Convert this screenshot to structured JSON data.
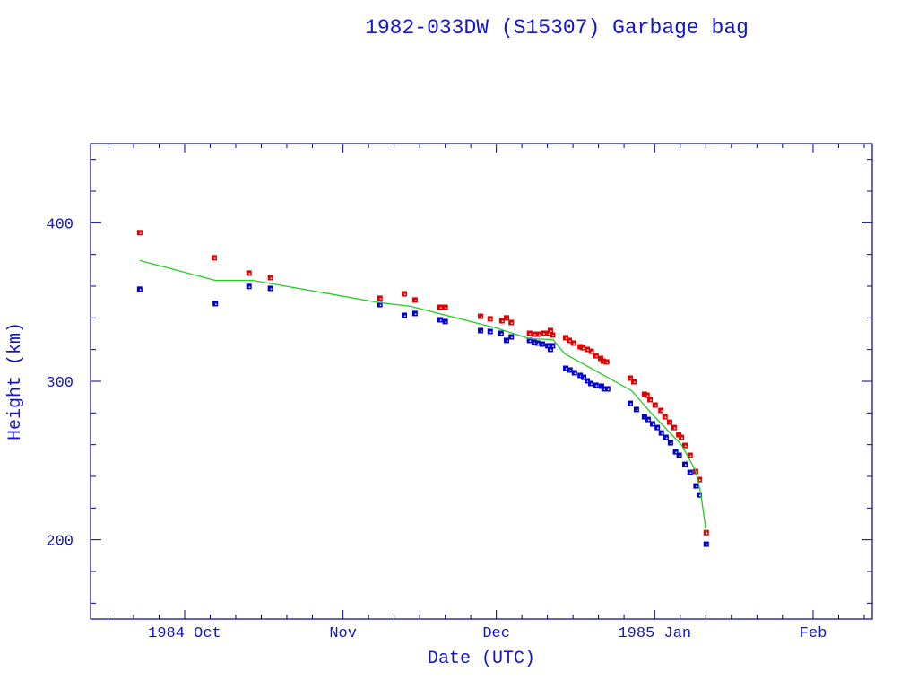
{
  "chart_data": {
    "type": "scatter",
    "title": "1982-033DW (S15307) Garbage bag",
    "xlabel": "Date (UTC)",
    "ylabel": "Height (km)",
    "xlim": [
      "1984-09-12T14:00",
      "1985-02-12T14:00"
    ],
    "ylim": [
      150,
      450
    ],
    "x_ticks": [
      {
        "date": "1984-10-01",
        "label": "1984 Oct"
      },
      {
        "date": "1984-11-01",
        "label": "Nov"
      },
      {
        "date": "1984-12-01",
        "label": "Dec"
      },
      {
        "date": "1985-01-01",
        "label": "1985 Jan"
      },
      {
        "date": "1985-02-01",
        "label": "Feb"
      }
    ],
    "y_ticks": [
      200,
      300,
      400
    ],
    "grid": false,
    "colors": {
      "axes": "#00008b",
      "text": "#1414c8",
      "apogee": "#e00000",
      "perigee": "#0000d0",
      "mean": "#22cc22"
    },
    "series": [
      {
        "marker": "square",
        "color": "#e00000",
        "points": [
          [
            "1984-09-22T05:00",
            393.8
          ],
          [
            "1984-10-06T19:00",
            377.9
          ],
          [
            "1984-10-13T14:00",
            368.3
          ],
          [
            "1984-10-17T19:00",
            365.4
          ],
          [
            "1984-11-08T05:00",
            352.4
          ],
          [
            "1984-11-13T00:00",
            355.2
          ],
          [
            "1984-11-15T02:00",
            351.3
          ],
          [
            "1984-11-20T00:00",
            346.7
          ],
          [
            "1984-11-21T00:00",
            346.7
          ],
          [
            "1984-11-27T22:00",
            341.0
          ],
          [
            "1984-11-29T19:00",
            339.4
          ],
          [
            "1984-12-02T02:00",
            338.2
          ],
          [
            "1984-12-03T00:00",
            340.0
          ],
          [
            "1984-12-03T22:00",
            337.1
          ],
          [
            "1984-12-07T12:00",
            330.3
          ],
          [
            "1984-12-08T10:00",
            329.7
          ],
          [
            "1984-12-09T07:00",
            329.7
          ],
          [
            "1984-12-10T05:00",
            330.3
          ],
          [
            "1984-12-11T05:00",
            330.3
          ],
          [
            "1984-12-11T14:00",
            332.0
          ],
          [
            "1984-12-12T00:00",
            329.2
          ],
          [
            "1984-12-14T14:00",
            327.5
          ],
          [
            "1984-12-15T07:00",
            325.8
          ],
          [
            "1984-12-16T02:00",
            324.1
          ],
          [
            "1984-12-17T10:00",
            321.8
          ],
          [
            "1984-12-17T22:00",
            321.2
          ],
          [
            "1984-12-18T19:00",
            320.1
          ],
          [
            "1984-12-19T14:00",
            318.9
          ],
          [
            "1984-12-20T12:00",
            316.1
          ],
          [
            "1984-12-21T10:00",
            314.4
          ],
          [
            "1984-12-21T22:00",
            312.7
          ],
          [
            "1984-12-22T14:00",
            312.2
          ],
          [
            "1984-12-27T05:00",
            302.0
          ],
          [
            "1984-12-27T22:00",
            299.7
          ],
          [
            "1984-12-30T00:00",
            291.8
          ],
          [
            "1984-12-30T12:00",
            291.2
          ],
          [
            "1984-12-31T02:00",
            288.4
          ],
          [
            "1985-01-01T02:00",
            285.0
          ],
          [
            "1985-01-02T05:00",
            281.6
          ],
          [
            "1985-01-03T00:00",
            277.6
          ],
          [
            "1985-01-03T22:00",
            274.2
          ],
          [
            "1985-01-04T19:00",
            270.8
          ],
          [
            "1985-01-05T17:00",
            266.3
          ],
          [
            "1985-01-06T05:00",
            264.6
          ],
          [
            "1985-01-06T22:00",
            259.5
          ],
          [
            "1985-01-07T22:00",
            253.3
          ],
          [
            "1985-01-09T00:00",
            243.1
          ],
          [
            "1985-01-09T17:00",
            238.0
          ],
          [
            "1985-01-11T02:00",
            204.5
          ]
        ]
      },
      {
        "marker": "square",
        "color": "#0000d0",
        "points": [
          [
            "1984-09-22T05:00",
            358.1
          ],
          [
            "1984-10-07T00:00",
            349.0
          ],
          [
            "1984-10-13T14:00",
            359.8
          ],
          [
            "1984-10-17T19:00",
            358.6
          ],
          [
            "1984-11-08T05:00",
            348.4
          ],
          [
            "1984-11-13T00:00",
            341.6
          ],
          [
            "1984-11-15T02:00",
            342.8
          ],
          [
            "1984-11-20T00:00",
            338.8
          ],
          [
            "1984-11-21T00:00",
            337.7
          ],
          [
            "1984-11-27T22:00",
            332.0
          ],
          [
            "1984-11-29T19:00",
            331.4
          ],
          [
            "1984-12-01T22:00",
            330.3
          ],
          [
            "1984-12-03T00:00",
            325.8
          ],
          [
            "1984-12-03T22:00",
            328.0
          ],
          [
            "1984-12-07T12:00",
            325.8
          ],
          [
            "1984-12-08T10:00",
            324.6
          ],
          [
            "1984-12-09T02:00",
            324.1
          ],
          [
            "1984-12-10T00:00",
            323.5
          ],
          [
            "1984-12-11T02:00",
            322.4
          ],
          [
            "1984-12-11T14:00",
            320.1
          ],
          [
            "1984-12-12T00:00",
            322.4
          ],
          [
            "1984-12-14T14:00",
            308.2
          ],
          [
            "1984-12-15T10:00",
            307.1
          ],
          [
            "1984-12-16T07:00",
            305.4
          ],
          [
            "1984-12-17T10:00",
            303.7
          ],
          [
            "1984-12-18T02:00",
            302.5
          ],
          [
            "1984-12-18T19:00",
            300.3
          ],
          [
            "1984-12-19T12:00",
            298.6
          ],
          [
            "1984-12-20T12:00",
            297.5
          ],
          [
            "1984-12-21T14:00",
            296.9
          ],
          [
            "1984-12-22T02:00",
            295.2
          ],
          [
            "1984-12-22T19:00",
            295.2
          ],
          [
            "1984-12-27T05:00",
            286.1
          ],
          [
            "1984-12-28T10:00",
            282.2
          ],
          [
            "1984-12-30T00:00",
            277.6
          ],
          [
            "1984-12-30T17:00",
            275.9
          ],
          [
            "1984-12-31T14:00",
            273.1
          ],
          [
            "1985-01-01T12:00",
            270.8
          ],
          [
            "1985-01-02T07:00",
            267.4
          ],
          [
            "1985-01-03T05:00",
            264.6
          ],
          [
            "1985-01-04T02:00",
            261.2
          ],
          [
            "1985-01-05T02:00",
            255.5
          ],
          [
            "1985-01-05T19:00",
            253.3
          ],
          [
            "1985-01-06T22:00",
            247.6
          ],
          [
            "1985-01-07T22:00",
            242.5
          ],
          [
            "1985-01-09T02:00",
            234.0
          ],
          [
            "1985-01-09T17:00",
            228.3
          ],
          [
            "1985-01-11T02:00",
            197.2
          ]
        ]
      },
      {
        "marker": "line",
        "color": "#22cc22",
        "points": [
          [
            "1984-09-22T05:00",
            376.2
          ],
          [
            "1984-10-07T00:00",
            363.7
          ],
          [
            "1984-10-14T07:00",
            363.7
          ],
          [
            "1984-11-08T05:00",
            349.6
          ],
          [
            "1984-11-14T05:00",
            347.3
          ],
          [
            "1984-11-30T22:00",
            333.7
          ],
          [
            "1984-12-07T12:00",
            326.9
          ],
          [
            "1984-12-12T02:00",
            326.3
          ],
          [
            "1984-12-14T10:00",
            317.3
          ],
          [
            "1984-12-27T12:00",
            294.0
          ],
          [
            "1984-12-31T19:00",
            278.2
          ],
          [
            "1985-01-06T05:00",
            260.0
          ],
          [
            "1985-01-09T00:00",
            243.6
          ],
          [
            "1985-01-10T00:00",
            229.5
          ],
          [
            "1985-01-11T02:00",
            204.5
          ]
        ]
      }
    ]
  }
}
